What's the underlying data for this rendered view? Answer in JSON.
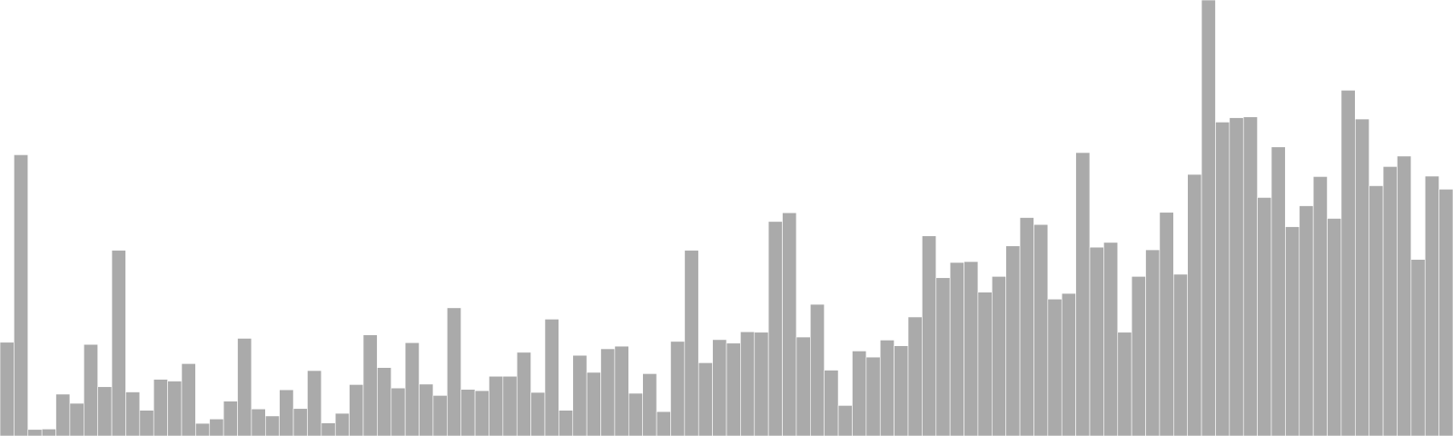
{
  "chart_data": {
    "type": "bar",
    "title": "",
    "xlabel": "",
    "ylabel": "",
    "grid": false,
    "legend": "none",
    "ylim": [
      0,
      100
    ],
    "bar_color": "#aaaaaa",
    "values": [
      21.5,
      64.5,
      1.5,
      1.6,
      9.6,
      7.5,
      21.0,
      11.3,
      42.6,
      10.1,
      5.9,
      13.0,
      12.6,
      16.6,
      2.9,
      3.9,
      8.0,
      22.4,
      6.2,
      4.6,
      10.6,
      6.3,
      15.0,
      3.0,
      5.2,
      11.8,
      23.2,
      15.7,
      11.0,
      21.4,
      11.9,
      9.3,
      29.4,
      10.7,
      10.4,
      13.7,
      13.7,
      19.2,
      10.0,
      26.8,
      5.9,
      18.5,
      14.6,
      20.0,
      20.6,
      9.8,
      14.3,
      5.6,
      21.7,
      42.6,
      16.8,
      22.1,
      21.3,
      23.9,
      23.8,
      49.2,
      51.2,
      22.7,
      30.2,
      15.1,
      7.0,
      19.5,
      18.1,
      22.0,
      20.7,
      27.3,
      45.9,
      36.3,
      39.8,
      40.0,
      33.0,
      36.6,
      43.6,
      50.1,
      48.5,
      31.4,
      32.7,
      65.0,
      43.3,
      44.4,
      23.8,
      36.6,
      42.7,
      51.3,
      37.1,
      60.0,
      100.0,
      72.0,
      73.0,
      73.2,
      54.7,
      66.3,
      48.0,
      52.8,
      59.5,
      49.9,
      79.3,
      72.7,
      57.4,
      61.8,
      64.2,
      40.5,
      59.6,
      56.6
    ]
  }
}
